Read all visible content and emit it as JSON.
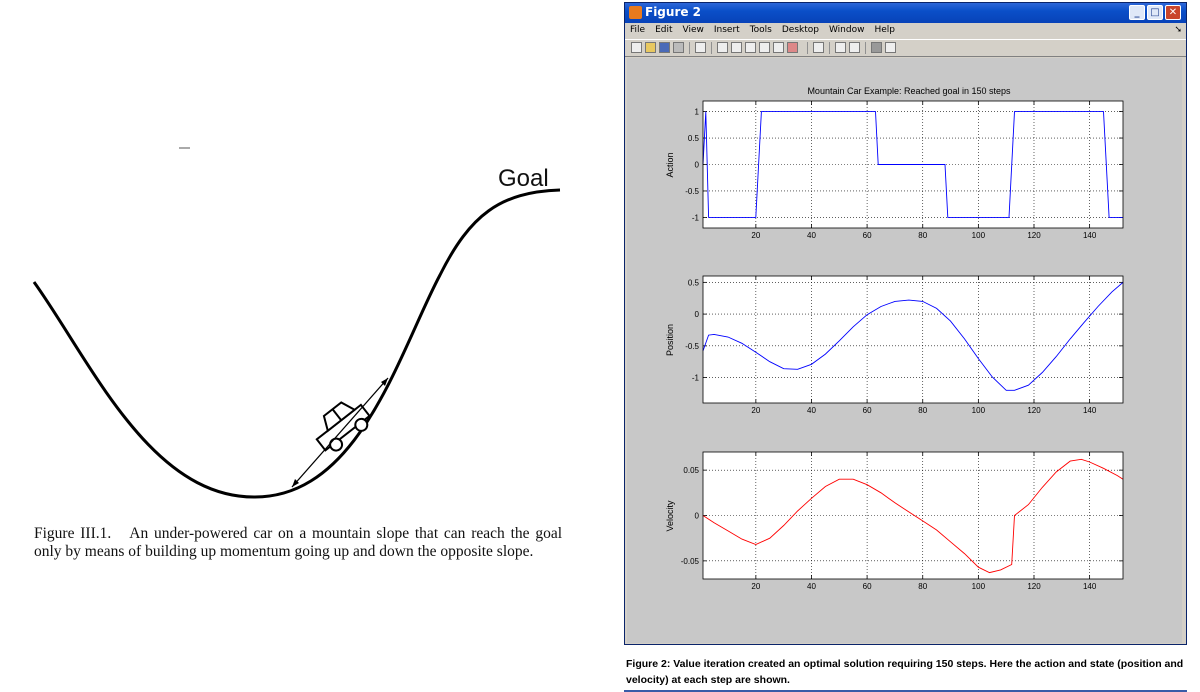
{
  "left_figure": {
    "goal_label": "Goal",
    "caption_number": "Figure III.1.",
    "caption_text": "An under-powered car on a mountain slope that can reach the goal only by means of building up momentum going up and down the opposite slope."
  },
  "window": {
    "title": "Figure 2",
    "menu": [
      "File",
      "Edit",
      "View",
      "Insert",
      "Tools",
      "Desktop",
      "Window",
      "Help"
    ]
  },
  "right_caption": "Figure 2: Value iteration created an optimal solution requiring 150 steps. Here the action and state (position and velocity) at each step are shown.",
  "colors": {
    "blue_line": "#0000ff",
    "red_line": "#ff0000",
    "window_bg": "#d4d0c8",
    "figure_bg": "#c8c8c8"
  },
  "chart_data": [
    {
      "type": "line",
      "title": "Mountain Car Example: Reached goal in 150 steps",
      "ylabel": "Action",
      "xlim": [
        1,
        152
      ],
      "ylim": [
        -1.2,
        1.2
      ],
      "xticks": [
        20,
        40,
        60,
        80,
        100,
        120,
        140
      ],
      "yticks": [
        1,
        0.5,
        0,
        -0.5,
        -1
      ],
      "ytick_labels": [
        "1",
        "0.5",
        "0",
        "-0.5",
        "-1"
      ],
      "grid": true,
      "color": "#0000ff",
      "x": [
        1,
        2,
        3,
        20,
        22,
        63,
        64,
        88,
        89,
        111,
        113,
        145,
        147,
        152
      ],
      "y": [
        0,
        1,
        -1,
        -1,
        1,
        1,
        0,
        0,
        -1,
        -1,
        1,
        1,
        -1,
        -1
      ]
    },
    {
      "type": "line",
      "ylabel": "Position",
      "xlim": [
        1,
        152
      ],
      "ylim": [
        -1.4,
        0.6
      ],
      "xticks": [
        20,
        40,
        60,
        80,
        100,
        120,
        140
      ],
      "yticks": [
        0.5,
        0,
        -0.5,
        -1
      ],
      "ytick_labels": [
        "0.5",
        "0",
        "-0.5",
        "-1"
      ],
      "grid": true,
      "color": "#0000ff",
      "x": [
        1,
        3,
        5,
        10,
        15,
        20,
        25,
        30,
        35,
        40,
        45,
        50,
        55,
        60,
        65,
        70,
        75,
        80,
        85,
        90,
        95,
        100,
        105,
        110,
        113,
        118,
        123,
        128,
        133,
        138,
        143,
        148,
        152
      ],
      "y": [
        -0.58,
        -0.33,
        -0.32,
        -0.36,
        -0.46,
        -0.6,
        -0.75,
        -0.86,
        -0.87,
        -0.79,
        -0.63,
        -0.42,
        -0.2,
        -0.01,
        0.12,
        0.2,
        0.22,
        0.2,
        0.09,
        -0.11,
        -0.39,
        -0.7,
        -0.99,
        -1.2,
        -1.2,
        -1.12,
        -0.92,
        -0.67,
        -0.39,
        -0.13,
        0.12,
        0.35,
        0.5
      ]
    },
    {
      "type": "line",
      "ylabel": "Velocity",
      "xlim": [
        1,
        152
      ],
      "ylim": [
        -0.07,
        0.07
      ],
      "xticks": [
        20,
        40,
        60,
        80,
        100,
        120,
        140
      ],
      "yticks": [
        0.05,
        0,
        -0.05
      ],
      "ytick_labels": [
        "0.05",
        "0",
        "-0.05"
      ],
      "grid": true,
      "color": "#ff0000",
      "x": [
        1,
        5,
        10,
        15,
        20,
        25,
        30,
        35,
        40,
        45,
        50,
        55,
        60,
        65,
        70,
        75,
        80,
        85,
        90,
        95,
        100,
        104,
        108,
        112,
        113,
        118,
        123,
        128,
        133,
        137,
        140,
        145,
        150,
        152
      ],
      "y": [
        0,
        -0.008,
        -0.017,
        -0.026,
        -0.032,
        -0.025,
        -0.011,
        0.005,
        0.019,
        0.032,
        0.04,
        0.04,
        0.034,
        0.025,
        0.014,
        0.004,
        -0.006,
        -0.016,
        -0.029,
        -0.042,
        -0.057,
        -0.063,
        -0.06,
        -0.054,
        0,
        0.012,
        0.031,
        0.048,
        0.06,
        0.062,
        0.059,
        0.052,
        0.044,
        0.04
      ]
    }
  ]
}
